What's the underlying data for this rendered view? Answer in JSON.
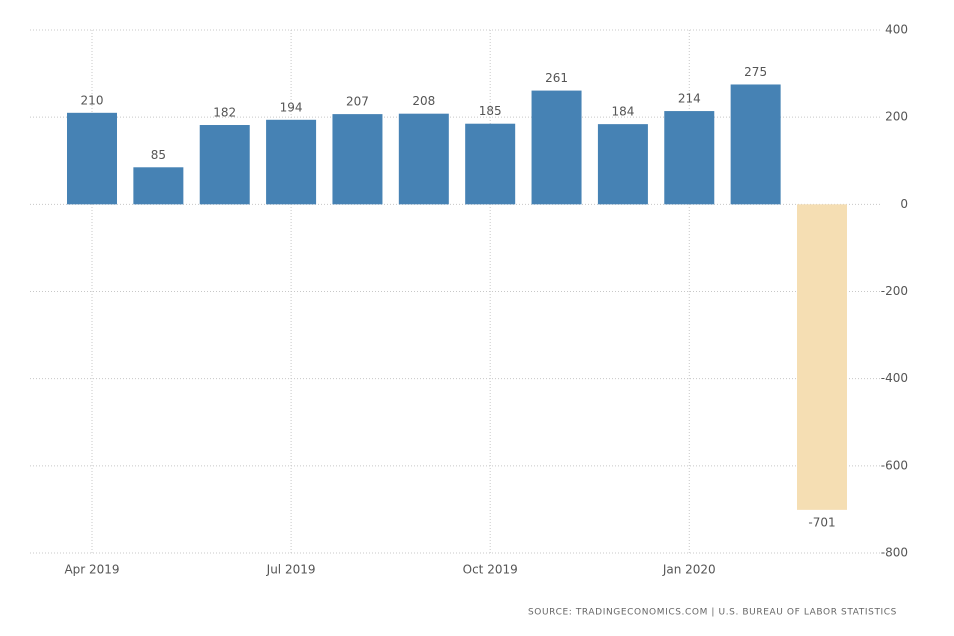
{
  "chart_data": {
    "type": "bar",
    "categories": [
      "Apr 2019",
      null,
      null,
      "Jul 2019",
      null,
      null,
      "Oct 2019",
      null,
      null,
      "Jan 2020",
      null,
      null
    ],
    "values": [
      210,
      85,
      182,
      194,
      207,
      208,
      185,
      261,
      184,
      214,
      275,
      -701
    ],
    "colors": [
      "#4682b4",
      "#4682b4",
      "#4682b4",
      "#4682b4",
      "#4682b4",
      "#4682b4",
      "#4682b4",
      "#4682b4",
      "#4682b4",
      "#4682b4",
      "#4682b4",
      "#f5deb3"
    ],
    "ylim": [
      -800,
      400
    ],
    "yticks": [
      -800,
      -600,
      -400,
      -200,
      0,
      200,
      400
    ],
    "grid": true,
    "source": "SOURCE: TRADINGECONOMICS.COM | U.S. BUREAU OF LABOR STATISTICS"
  }
}
